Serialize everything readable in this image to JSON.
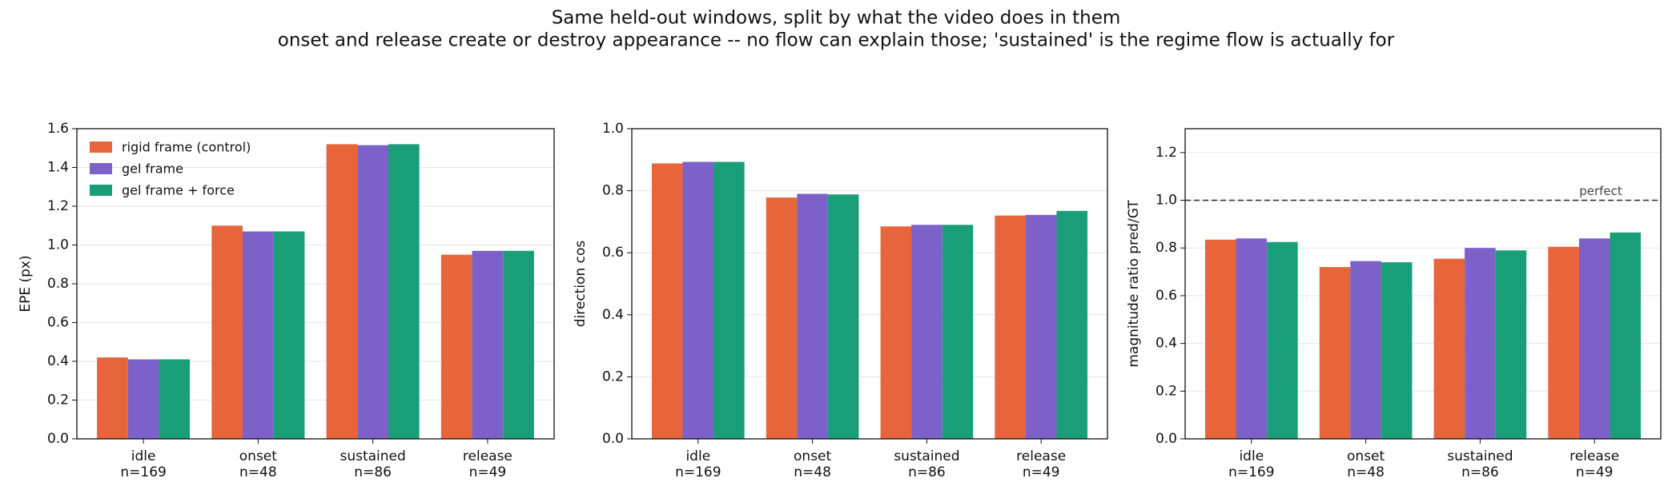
{
  "title": "Same held-out windows, split by what the video does in them",
  "subtitle": "onset and release create or destroy appearance -- no flow can explain those; 'sustained' is the regime flow is actually for",
  "chart_data": [
    {
      "type": "bar",
      "ylabel": "EPE (px)",
      "categories": [
        [
          "idle",
          "n=169"
        ],
        [
          "onset",
          "n=48"
        ],
        [
          "sustained",
          "n=86"
        ],
        [
          "release",
          "n=49"
        ]
      ],
      "series": [
        {
          "name": "rigid frame (control)",
          "color": "#e8643a",
          "values": [
            0.42,
            1.1,
            1.52,
            0.95
          ]
        },
        {
          "name": "gel frame",
          "color": "#7b61c8",
          "values": [
            0.41,
            1.07,
            1.515,
            0.97
          ]
        },
        {
          "name": "gel frame + force",
          "color": "#1a9e77",
          "values": [
            0.41,
            1.07,
            1.52,
            0.97
          ]
        }
      ],
      "ylim": [
        0,
        1.6
      ],
      "yticks": [
        {
          "value": 0,
          "label": "0.0"
        },
        {
          "value": 0.2,
          "label": "0.2"
        },
        {
          "value": 0.4,
          "label": "0.4"
        },
        {
          "value": 0.6,
          "label": "0.6"
        },
        {
          "value": 0.8,
          "label": "0.8"
        },
        {
          "value": 1.0,
          "label": "1.0"
        },
        {
          "value": 1.2,
          "label": "1.2"
        },
        {
          "value": 1.4,
          "label": "1.4"
        },
        {
          "value": 1.6,
          "label": "1.6"
        }
      ],
      "grid": true,
      "legend": "upper left"
    },
    {
      "type": "bar",
      "ylabel": "direction cos",
      "categories": [
        [
          "idle",
          "n=169"
        ],
        [
          "onset",
          "n=48"
        ],
        [
          "sustained",
          "n=86"
        ],
        [
          "release",
          "n=49"
        ]
      ],
      "series": [
        {
          "color": "#e8643a",
          "values": [
            0.888,
            0.778,
            0.685,
            0.72
          ]
        },
        {
          "color": "#7b61c8",
          "values": [
            0.893,
            0.79,
            0.69,
            0.722
          ]
        },
        {
          "color": "#1a9e77",
          "values": [
            0.893,
            0.788,
            0.69,
            0.735
          ]
        }
      ],
      "ylim": [
        0,
        1.0
      ],
      "yticks": [
        {
          "value": 0,
          "label": "0.0"
        },
        {
          "value": 0.2,
          "label": "0.2"
        },
        {
          "value": 0.4,
          "label": "0.4"
        },
        {
          "value": 0.6,
          "label": "0.6"
        },
        {
          "value": 0.8,
          "label": "0.8"
        },
        {
          "value": 1.0,
          "label": "1.0"
        }
      ],
      "grid": true
    },
    {
      "type": "bar",
      "ylabel": "magnitude ratio pred/GT",
      "categories": [
        [
          "idle",
          "n=169"
        ],
        [
          "onset",
          "n=48"
        ],
        [
          "sustained",
          "n=86"
        ],
        [
          "release",
          "n=49"
        ]
      ],
      "series": [
        {
          "color": "#e8643a",
          "values": [
            0.835,
            0.72,
            0.755,
            0.805
          ]
        },
        {
          "color": "#7b61c8",
          "values": [
            0.84,
            0.745,
            0.8,
            0.84
          ]
        },
        {
          "color": "#1a9e77",
          "values": [
            0.825,
            0.74,
            0.79,
            0.865
          ]
        }
      ],
      "ylim": [
        0,
        1.3
      ],
      "yticks": [
        {
          "value": 0,
          "label": "0.0"
        },
        {
          "value": 0.2,
          "label": "0.2"
        },
        {
          "value": 0.4,
          "label": "0.4"
        },
        {
          "value": 0.6,
          "label": "0.6"
        },
        {
          "value": 0.8,
          "label": "0.8"
        },
        {
          "value": 1.0,
          "label": "1.0"
        },
        {
          "value": 1.2,
          "label": "1.2"
        }
      ],
      "grid": true,
      "hline": {
        "value": 1.0,
        "label": "perfect"
      }
    }
  ]
}
